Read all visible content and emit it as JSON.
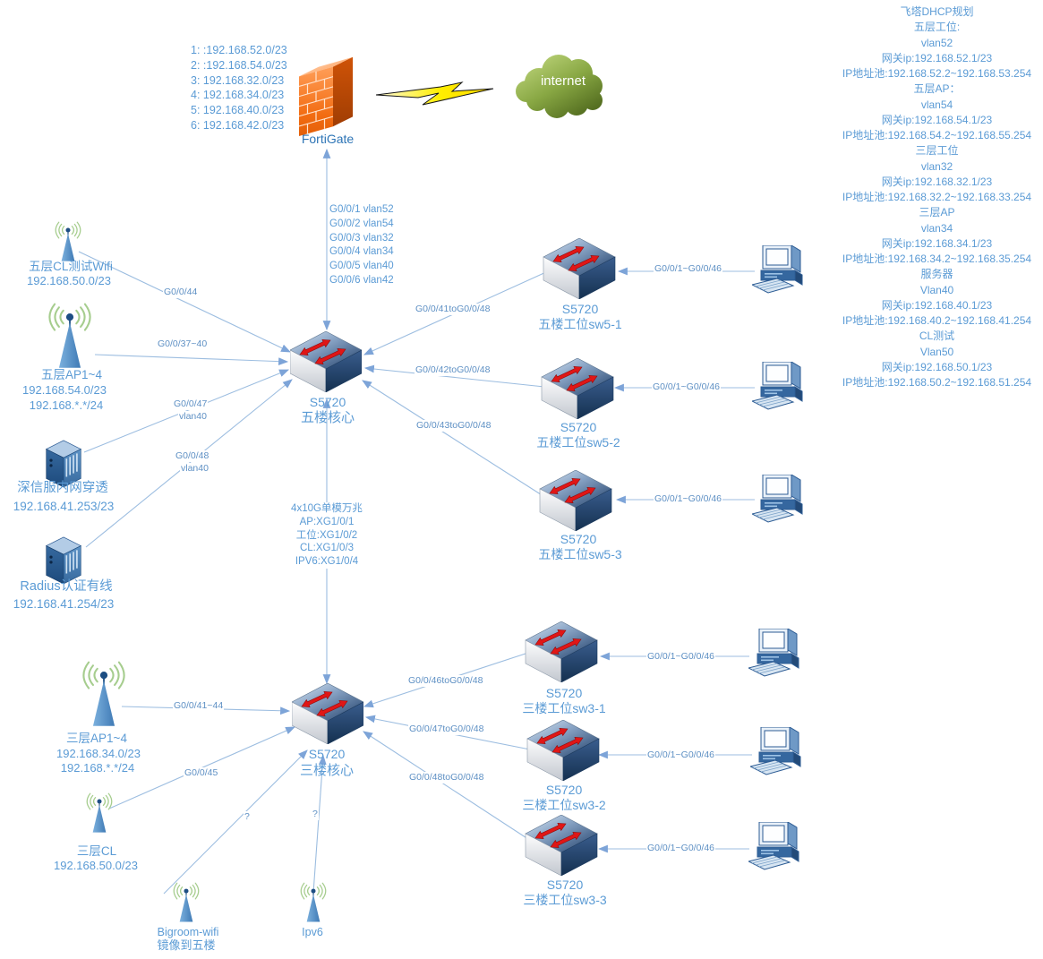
{
  "colors": {
    "label_text": "#5b9bd5",
    "edge_line": "#9cbde0",
    "switch_arrow_red": "#e01616",
    "firewall_orange": "#f26c12",
    "cloud_green": "#88a743",
    "lightning_yellow": "#ffee00",
    "antenna_blue": "#4f8fce",
    "signal_green": "#a6cd8e"
  },
  "internet": {
    "label": "internet"
  },
  "firewall": {
    "label": "FortiGate",
    "networks": [
      "1: :192.168.52.0/23",
      "2: :192.168.54.0/23",
      "3: 192.168.32.0/23",
      "4: 192.168.34.0/23",
      "5: 192.168.40.0/23",
      "6: 192.168.42.0/23"
    ]
  },
  "core5": {
    "model": "S5720",
    "name": "五楼核心",
    "port_vlans": [
      "G0/0/1 vlan52",
      "G0/0/2 vlan54",
      "G0/0/3 vlan32",
      "G0/0/4 vlan34",
      "G0/0/5 vlan40",
      "G0/0/6 vlan42"
    ],
    "uplink": [
      "4x10G单模万兆",
      "AP:XG1/0/1",
      "工位:XG1/0/2",
      "CL:XG1/0/3",
      "IPV6:XG1/0/4"
    ]
  },
  "core3": {
    "model": "S5720",
    "name": "三楼核心"
  },
  "switches5": [
    {
      "model": "S5720",
      "name": "五楼工位sw5-1"
    },
    {
      "model": "S5720",
      "name": "五楼工位sw5-2"
    },
    {
      "model": "S5720",
      "name": "五楼工位sw5-3"
    }
  ],
  "switches3": [
    {
      "model": "S5720",
      "name": "三楼工位sw3-1"
    },
    {
      "model": "S5720",
      "name": "三楼工位sw3-2"
    },
    {
      "model": "S5720",
      "name": "三楼工位sw3-3"
    }
  ],
  "nodes": {
    "wifi5cl": {
      "line1": "五层CL测试Wifi",
      "line2": "192.168.50.0/23"
    },
    "ap5": {
      "line1": "五层AP1~4",
      "line2": "192.168.54.0/23",
      "line3": "192.168.*.*/24"
    },
    "sangfor": {
      "line1": "深信服内网穿透",
      "line2": "192.168.41.253/23"
    },
    "radius": {
      "line1": "Radius认证有线",
      "line2": "192.168.41.254/23"
    },
    "ap3": {
      "line1": "三层AP1~4",
      "line2": "192.168.34.0/23",
      "line3": "192.168.*.*/24"
    },
    "cl3": {
      "line1": "三层CL",
      "line2": "192.168.50.0/23"
    },
    "bigroom": {
      "line1": "Bigroom-wifi",
      "line2": "镜像到五楼"
    },
    "ipv6": {
      "line1": "Ipv6"
    }
  },
  "edges": {
    "wifi5_core": "G0/0/44",
    "ap5_core": "G0/0/37~40",
    "sangfor_port": "G0/0/47",
    "sangfor_vlan": "vlan40",
    "radius_port": "G0/0/48",
    "radius_vlan": "vlan40",
    "core5_sw1": "G0/0/41toG0/0/48",
    "core5_sw2": "G0/0/42toG0/0/48",
    "core5_sw3": "G0/0/43toG0/0/48",
    "pc_ports": "G0/0/1~G0/0/46",
    "ap3_core": "G0/0/41~44",
    "cl3_core": "G0/0/45",
    "core3_sw1": "G0/0/46toG0/0/48",
    "core3_sw2": "G0/0/47toG0/0/48",
    "core3_sw3": "G0/0/48toG0/0/48",
    "unknown": "?"
  },
  "dhcp": {
    "title": "飞塔DHCP规划",
    "lines": [
      "五层工位:",
      "vlan52",
      "网关ip:192.168.52.1/23",
      "IP地址池:192.168.52.2~192.168.53.254",
      "五层AP：",
      "vlan54",
      "网关ip:192.168.54.1/23",
      "IP地址池:192.168.54.2~192.168.55.254",
      "三层工位",
      "vlan32",
      "网关ip:192.168.32.1/23",
      "IP地址池:192.168.32.2~192.168.33.254",
      "三层AP",
      "vlan34",
      "网关ip:192.168.34.1/23",
      "IP地址池:192.168.34.2~192.168.35.254",
      "服务器",
      "Vlan40",
      "网关ip:192.168.40.1/23",
      "IP地址池:192.168.40.2~192.168.41.254",
      "CL测试",
      "Vlan50",
      "网关ip:192.168.50.1/23",
      "IP地址池:192.168.50.2~192.168.51.254"
    ]
  }
}
